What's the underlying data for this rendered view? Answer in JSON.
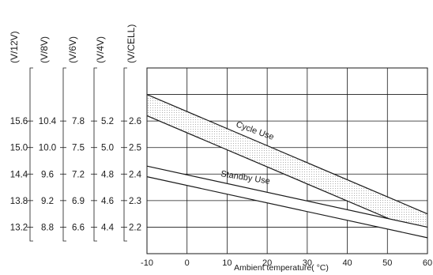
{
  "chart_data": {
    "type": "line",
    "xlabel": "Ambient  temperature( °C)",
    "x_ticks": [
      "-10",
      "0",
      "10",
      "20",
      "30",
      "40",
      "50",
      "60"
    ],
    "xlim": [
      -10,
      60
    ],
    "ylim": [
      2.1,
      2.8
    ],
    "grid": true,
    "voltage_scales": [
      {
        "header": "(V/12V)",
        "ticks": [
          "15.6",
          "15.0",
          "14.4",
          "13.8",
          "13.2"
        ]
      },
      {
        "header": "(V/8V)",
        "ticks": [
          "10.4",
          "10.0",
          "9.6",
          "9.2",
          "8.8"
        ]
      },
      {
        "header": "(V/6V)",
        "ticks": [
          "7.8",
          "7.5",
          "7.2",
          "6.9",
          "6.6"
        ]
      },
      {
        "header": "(V/4V)",
        "ticks": [
          "5.2",
          "5.0",
          "4.8",
          "4.6",
          "4.4"
        ]
      },
      {
        "header": "(V/CELL)",
        "ticks": [
          "2.6",
          "2.5",
          "2.4",
          "2.3",
          "2.2"
        ]
      }
    ],
    "cell_tick_values": [
      2.6,
      2.5,
      2.4,
      2.3,
      2.2
    ],
    "series": [
      {
        "name": "Cycle Use",
        "x": [
          -10,
          60
        ],
        "upper": [
          2.7,
          2.25
        ],
        "lower": [
          2.62,
          2.17
        ]
      },
      {
        "name": "Standby Use",
        "x": [
          -10,
          60
        ],
        "upper": [
          2.43,
          2.2
        ],
        "lower": [
          2.39,
          2.16
        ]
      }
    ]
  }
}
